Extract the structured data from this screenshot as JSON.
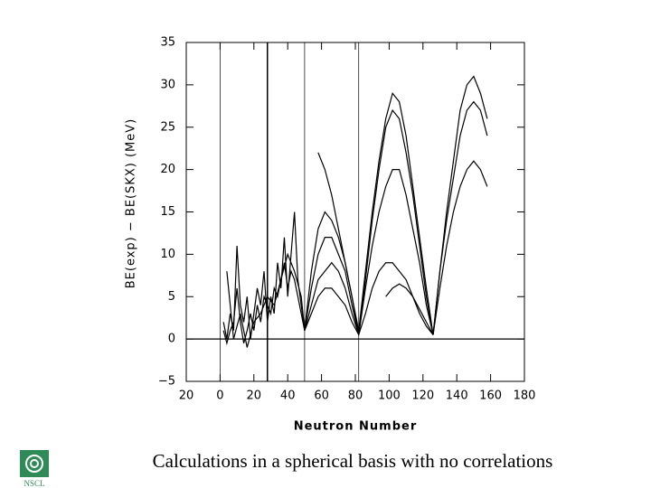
{
  "chart_data": {
    "type": "line",
    "x_label": "Neutron Number",
    "y_label": "BE(exp) − BE(SKX) (MeV)",
    "xlim": [
      -20,
      180
    ],
    "ylim": [
      -5,
      35
    ],
    "xticks": [
      {
        "value": -20,
        "label": "20"
      },
      0,
      20,
      40,
      60,
      80,
      100,
      120,
      140,
      160,
      180
    ],
    "yticks": [
      {
        "value": -5,
        "label": "−5"
      },
      0,
      5,
      10,
      15,
      20,
      25,
      30,
      35
    ],
    "vertical_lines": [
      0,
      28,
      50,
      82
    ],
    "horizontal_lines": [
      0
    ],
    "series": [
      {
        "color": "#000000",
        "x": [
          58,
          62,
          66,
          70,
          74,
          78,
          82,
          86,
          90,
          94,
          98,
          102,
          106,
          110,
          114,
          118,
          122,
          126,
          130,
          134,
          138,
          142,
          146,
          150,
          154,
          158
        ],
        "values": [
          22,
          20,
          17,
          13,
          9,
          5,
          1,
          8,
          15,
          21,
          26,
          29,
          28,
          24,
          18,
          12,
          6,
          0.5,
          8,
          15,
          21,
          27,
          30,
          31,
          29,
          26
        ]
      },
      {
        "color": "#000000",
        "x": [
          50,
          54,
          58,
          62,
          66,
          70,
          74,
          78,
          82,
          86,
          90,
          94,
          98,
          102,
          106,
          110,
          114,
          118,
          122,
          126,
          130,
          134,
          138,
          142,
          146,
          150,
          154,
          158
        ],
        "values": [
          1,
          8,
          13,
          15,
          14,
          12,
          9,
          5,
          0.5,
          7,
          14,
          20,
          25,
          27,
          26,
          22,
          17,
          11,
          5,
          0.5,
          8,
          14,
          19,
          24,
          27,
          28,
          27,
          24
        ]
      },
      {
        "color": "#000000",
        "x": [
          50,
          54,
          58,
          62,
          66,
          70,
          74,
          78,
          82,
          86,
          90,
          94,
          98,
          102,
          106,
          110,
          114,
          118,
          122,
          126,
          130,
          134,
          138,
          142,
          146,
          150,
          154,
          158
        ],
        "values": [
          1,
          6,
          10,
          12,
          12,
          10,
          8,
          4,
          0.5,
          6,
          11,
          15,
          18,
          20,
          20,
          17,
          13,
          9,
          4,
          0.5,
          6,
          11,
          15,
          18,
          20,
          21,
          20,
          18
        ]
      },
      {
        "color": "#000000",
        "x": [
          50,
          54,
          58,
          62,
          66,
          70,
          74,
          78,
          82,
          86,
          90,
          94,
          98,
          102,
          106,
          110,
          114,
          118,
          122,
          126
        ],
        "values": [
          1,
          4,
          7,
          8,
          9,
          8,
          6,
          3,
          0.5,
          3,
          6,
          8,
          9,
          9,
          8,
          7,
          5,
          3,
          1.5,
          0.5
        ]
      },
      {
        "color": "#000000",
        "x": [
          50,
          54,
          58,
          62,
          66,
          70,
          74,
          78,
          82
        ],
        "values": [
          1,
          3,
          5,
          6,
          6,
          5,
          4,
          2,
          0.5
        ]
      },
      {
        "color": "#000000",
        "x": [
          98,
          102,
          106,
          110,
          114,
          118,
          122,
          126
        ],
        "values": [
          5,
          6,
          6.5,
          6,
          5,
          3.5,
          2,
          0.5
        ]
      },
      {
        "color": "#000000",
        "x": [
          2,
          4,
          6,
          8,
          10,
          12,
          14,
          16,
          18,
          20,
          22,
          24,
          26,
          28,
          30,
          32,
          34,
          36,
          38,
          40,
          42,
          44,
          46,
          48,
          50
        ],
        "values": [
          2,
          0,
          3,
          1,
          11,
          4,
          2,
          5,
          0,
          3,
          6,
          4,
          8,
          2,
          5,
          3,
          9,
          6,
          12,
          5,
          10,
          15,
          7,
          4,
          1
        ]
      },
      {
        "color": "#000000",
        "x": [
          2,
          4,
          6,
          8,
          10,
          12,
          14,
          16,
          18,
          20,
          22,
          24,
          26,
          28,
          30,
          32,
          34,
          36,
          38,
          40,
          42,
          44,
          46,
          48,
          50
        ],
        "values": [
          1,
          -0.5,
          1,
          2,
          6,
          2,
          -0.5,
          1,
          3,
          1,
          4,
          2,
          5,
          4,
          3,
          6,
          5,
          7,
          9,
          6,
          8,
          7,
          5,
          3,
          1
        ]
      },
      {
        "color": "#000000",
        "x": [
          4,
          8,
          12,
          16,
          20,
          24,
          28,
          32,
          36,
          40,
          44,
          48,
          50
        ],
        "values": [
          8,
          0,
          3,
          -1,
          2,
          3,
          5,
          4,
          7,
          10,
          8,
          5,
          1
        ]
      }
    ]
  },
  "caption": "Calculations in a spherical basis with no correlations",
  "logo_text": "NSCL"
}
